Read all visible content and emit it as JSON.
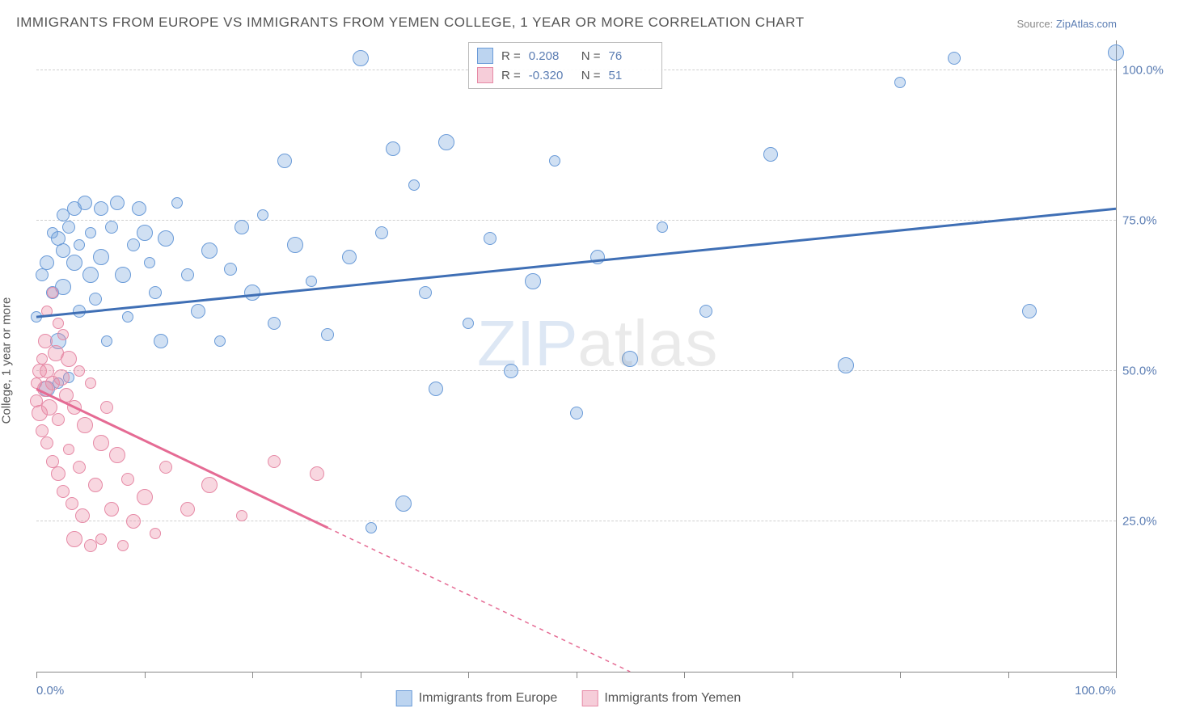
{
  "title": "IMMIGRANTS FROM EUROPE VS IMMIGRANTS FROM YEMEN COLLEGE, 1 YEAR OR MORE CORRELATION CHART",
  "source_prefix": "Source: ",
  "source_link": "ZipAtlas.com",
  "ylabel": "College, 1 year or more",
  "watermark_z": "ZIP",
  "watermark_rest": "atlas",
  "chart": {
    "type": "scatter",
    "xlim": [
      0,
      100
    ],
    "ylim": [
      0,
      105
    ],
    "background_color": "#ffffff",
    "grid_color": "#d0d0d0",
    "axis_color": "#888888",
    "ytick_positions": [
      25,
      50,
      75,
      100
    ],
    "ytick_labels": [
      "25.0%",
      "50.0%",
      "75.0%",
      "100.0%"
    ],
    "xtick_positions": [
      0,
      10,
      20,
      30,
      40,
      50,
      60,
      70,
      80,
      90,
      100
    ],
    "xtick_labels_shown": {
      "0": "0.0%",
      "100": "100.0%"
    },
    "label_color": "#5b7db3",
    "label_fontsize": 15
  },
  "series": {
    "europe": {
      "label": "Immigrants from Europe",
      "color_fill": "rgba(120,165,220,0.35)",
      "color_stroke": "#6a9bd8",
      "swatch_fill": "#bcd4f0",
      "swatch_border": "#6a9bd8",
      "R": "0.208",
      "N": "76",
      "trend": {
        "x1": 0,
        "y1": 59,
        "x2": 100,
        "y2": 77,
        "solid_until_x": 100,
        "color": "#3f6fb5",
        "width": 3
      },
      "marker_radius_base": 7,
      "points": [
        [
          0,
          59
        ],
        [
          0.5,
          66
        ],
        [
          1,
          68
        ],
        [
          1,
          47
        ],
        [
          1.5,
          73
        ],
        [
          1.5,
          63
        ],
        [
          2,
          72
        ],
        [
          2,
          55
        ],
        [
          2,
          48
        ],
        [
          2.5,
          76
        ],
        [
          2.5,
          70
        ],
        [
          2.5,
          64
        ],
        [
          3,
          49
        ],
        [
          3,
          74
        ],
        [
          3.5,
          77
        ],
        [
          3.5,
          68
        ],
        [
          4,
          71
        ],
        [
          4,
          60
        ],
        [
          4.5,
          78
        ],
        [
          5,
          66
        ],
        [
          5,
          73
        ],
        [
          5.5,
          62
        ],
        [
          6,
          77
        ],
        [
          6,
          69
        ],
        [
          6.5,
          55
        ],
        [
          7,
          74
        ],
        [
          7.5,
          78
        ],
        [
          8,
          66
        ],
        [
          8.5,
          59
        ],
        [
          9,
          71
        ],
        [
          9.5,
          77
        ],
        [
          10,
          73
        ],
        [
          10.5,
          68
        ],
        [
          11,
          63
        ],
        [
          11.5,
          55
        ],
        [
          12,
          72
        ],
        [
          13,
          78
        ],
        [
          14,
          66
        ],
        [
          15,
          60
        ],
        [
          16,
          70
        ],
        [
          17,
          55
        ],
        [
          18,
          67
        ],
        [
          19,
          74
        ],
        [
          20,
          63
        ],
        [
          21,
          76
        ],
        [
          22,
          58
        ],
        [
          23,
          85
        ],
        [
          24,
          71
        ],
        [
          25.5,
          65
        ],
        [
          27,
          56
        ],
        [
          29,
          69
        ],
        [
          30,
          102
        ],
        [
          31,
          24
        ],
        [
          32,
          73
        ],
        [
          33,
          87
        ],
        [
          34,
          28
        ],
        [
          35,
          81
        ],
        [
          36,
          63
        ],
        [
          37,
          47
        ],
        [
          38,
          88
        ],
        [
          40,
          58
        ],
        [
          42,
          72
        ],
        [
          44,
          50
        ],
        [
          46,
          65
        ],
        [
          48,
          85
        ],
        [
          50,
          43
        ],
        [
          52,
          69
        ],
        [
          55,
          52
        ],
        [
          58,
          74
        ],
        [
          62,
          60
        ],
        [
          68,
          86
        ],
        [
          75,
          51
        ],
        [
          80,
          98
        ],
        [
          85,
          102
        ],
        [
          92,
          60
        ],
        [
          100,
          103
        ]
      ]
    },
    "yemen": {
      "label": "Immigrants from Yemen",
      "color_fill": "rgba(235,140,165,0.35)",
      "color_stroke": "#e68aa6",
      "swatch_fill": "#f6cdd9",
      "swatch_border": "#e68aa6",
      "R": "-0.320",
      "N": "51",
      "trend": {
        "x1": 0,
        "y1": 47,
        "x2": 55,
        "y2": 0,
        "solid_until_x": 27,
        "color": "#e56b94",
        "width": 3
      },
      "marker_radius_base": 7,
      "points": [
        [
          0,
          48
        ],
        [
          0,
          45
        ],
        [
          0.3,
          50
        ],
        [
          0.3,
          43
        ],
        [
          0.5,
          52
        ],
        [
          0.5,
          40
        ],
        [
          0.8,
          55
        ],
        [
          0.8,
          47
        ],
        [
          1,
          60
        ],
        [
          1,
          38
        ],
        [
          1,
          50
        ],
        [
          1.2,
          44
        ],
        [
          1.5,
          63
        ],
        [
          1.5,
          35
        ],
        [
          1.5,
          48
        ],
        [
          1.8,
          53
        ],
        [
          2,
          58
        ],
        [
          2,
          42
        ],
        [
          2,
          33
        ],
        [
          2.3,
          49
        ],
        [
          2.5,
          56
        ],
        [
          2.5,
          30
        ],
        [
          2.8,
          46
        ],
        [
          3,
          52
        ],
        [
          3,
          37
        ],
        [
          3.3,
          28
        ],
        [
          3.5,
          44
        ],
        [
          3.5,
          22
        ],
        [
          4,
          50
        ],
        [
          4,
          34
        ],
        [
          4.3,
          26
        ],
        [
          4.5,
          41
        ],
        [
          5,
          48
        ],
        [
          5,
          21
        ],
        [
          5.5,
          31
        ],
        [
          6,
          38
        ],
        [
          6,
          22
        ],
        [
          6.5,
          44
        ],
        [
          7,
          27
        ],
        [
          7.5,
          36
        ],
        [
          8,
          21
        ],
        [
          8.5,
          32
        ],
        [
          9,
          25
        ],
        [
          10,
          29
        ],
        [
          11,
          23
        ],
        [
          12,
          34
        ],
        [
          14,
          27
        ],
        [
          16,
          31
        ],
        [
          19,
          26
        ],
        [
          22,
          35
        ],
        [
          26,
          33
        ]
      ]
    }
  },
  "legend_top": {
    "R_label": "R  =",
    "N_label": "N  ="
  }
}
